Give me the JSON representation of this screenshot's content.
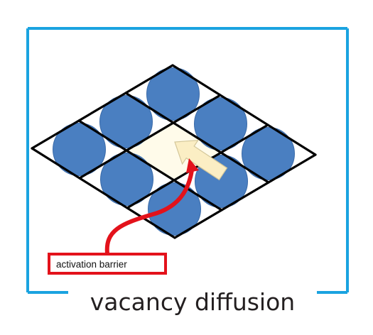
{
  "caption": "vacancy diffusion",
  "barrier_label": "activation barrier",
  "colors": {
    "frame": "#1aa3e0",
    "atom": "#4a7fc1",
    "atom_edge": "#3a6aa8",
    "grid": "#000000",
    "vacancy_fill": "#fffbea",
    "arrow_fill": "#fbeec4",
    "arrow_stroke": "#d4c79a",
    "barrier_red": "#e3121b"
  },
  "icons": {
    "diffusion_arrow": "arrow-up-left-icon",
    "barrier_pointer": "curved-arrow-icon"
  },
  "lattice": {
    "rows": 3,
    "cols": 3,
    "vacancy_cell": [
      1,
      1
    ],
    "occupied_cells": [
      [
        0,
        0
      ],
      [
        0,
        1
      ],
      [
        0,
        2
      ],
      [
        1,
        0
      ],
      [
        1,
        2
      ],
      [
        2,
        0
      ],
      [
        2,
        1
      ],
      [
        2,
        2
      ]
    ]
  }
}
